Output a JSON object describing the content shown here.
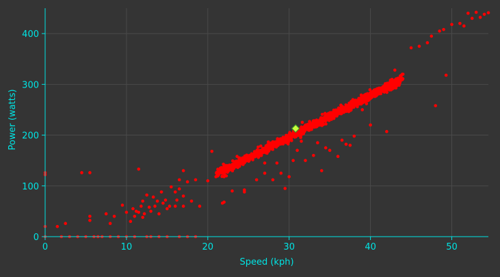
{
  "chart_data": {
    "type": "scatter",
    "title": "",
    "xlabel": "Speed (kph)",
    "ylabel": "Power (watts)",
    "xlim": [
      0,
      54.5
    ],
    "ylim": [
      0,
      450
    ],
    "x_ticks": [
      0,
      10,
      20,
      30,
      40,
      50
    ],
    "y_ticks": [
      0,
      100,
      200,
      300,
      400
    ],
    "grid": true,
    "legend": "none",
    "colors": {
      "background": "#343434",
      "grid": "#4a4a4a",
      "axis": "#00e5e5",
      "text": "#00e5e5",
      "points": "#ff0000",
      "highlight_fill": "#c8ff3c",
      "highlight_stroke": "#3a8a2a"
    },
    "series": [
      {
        "main_band": {
          "x_range": [
            21,
            44
          ],
          "slope": 8.2,
          "intercept": -50,
          "spread": 4,
          "density": "very high"
        },
        "points": [
          [
            0,
            0
          ],
          [
            0,
            20
          ],
          [
            0,
            122
          ],
          [
            0,
            126
          ],
          [
            1.5,
            20
          ],
          [
            2.5,
            26
          ],
          [
            2,
            0
          ],
          [
            3,
            0
          ],
          [
            4,
            0
          ],
          [
            5,
            0
          ],
          [
            5.5,
            32
          ],
          [
            5.5,
            40
          ],
          [
            6,
            0
          ],
          [
            6.5,
            0
          ],
          [
            7,
            0
          ],
          [
            7.5,
            45
          ],
          [
            8,
            26
          ],
          [
            8,
            0
          ],
          [
            8.5,
            40
          ],
          [
            9,
            0
          ],
          [
            9.5,
            62
          ],
          [
            10,
            48
          ],
          [
            10,
            0
          ],
          [
            10.5,
            30
          ],
          [
            10.8,
            55
          ],
          [
            11,
            40
          ],
          [
            11,
            0
          ],
          [
            11.2,
            50
          ],
          [
            11.5,
            133
          ],
          [
            11.5,
            48
          ],
          [
            11.8,
            60
          ],
          [
            12,
            70
          ],
          [
            12,
            38
          ],
          [
            12.2,
            45
          ],
          [
            12.5,
            0
          ],
          [
            12.5,
            82
          ],
          [
            12.8,
            58
          ],
          [
            13,
            50
          ],
          [
            13,
            0
          ],
          [
            13.3,
            78
          ],
          [
            13.5,
            60
          ],
          [
            13.8,
            70
          ],
          [
            14,
            45
          ],
          [
            14,
            0
          ],
          [
            14.3,
            88
          ],
          [
            14.5,
            66
          ],
          [
            14.8,
            72
          ],
          [
            15,
            55
          ],
          [
            15,
            0
          ],
          [
            15.3,
            60
          ],
          [
            15.5,
            98
          ],
          [
            16,
            88
          ],
          [
            16,
            60
          ],
          [
            16.2,
            72
          ],
          [
            16.5,
            94
          ],
          [
            16.5,
            0
          ],
          [
            17,
            60
          ],
          [
            17,
            80
          ],
          [
            17.5,
            108
          ],
          [
            17.5,
            0
          ],
          [
            18,
            70
          ],
          [
            18.5,
            112
          ],
          [
            18.5,
            0
          ],
          [
            19,
            60
          ],
          [
            20,
            110
          ],
          [
            20.5,
            168
          ],
          [
            21,
            118
          ],
          [
            21.8,
            66
          ],
          [
            22,
            68
          ],
          [
            22,
            118
          ],
          [
            23,
            90
          ],
          [
            24.5,
            88
          ],
          [
            24.5,
            92
          ],
          [
            26,
            112
          ],
          [
            27,
            125
          ],
          [
            27,
            145
          ],
          [
            28,
            112
          ],
          [
            28.5,
            145
          ],
          [
            29,
            125
          ],
          [
            29.5,
            95
          ],
          [
            30,
            118
          ],
          [
            30.5,
            150
          ],
          [
            31,
            170
          ],
          [
            31.5,
            188
          ],
          [
            32,
            150
          ],
          [
            33,
            160
          ],
          [
            33.5,
            185
          ],
          [
            34,
            130
          ],
          [
            34.5,
            175
          ],
          [
            35,
            170
          ],
          [
            36,
            158
          ],
          [
            36.5,
            190
          ],
          [
            37,
            182
          ],
          [
            37.5,
            180
          ],
          [
            38,
            198
          ],
          [
            39,
            250
          ],
          [
            40,
            220
          ],
          [
            41,
            290
          ],
          [
            42,
            207
          ],
          [
            43,
            328
          ],
          [
            44,
            320
          ],
          [
            45,
            372
          ],
          [
            46,
            375
          ],
          [
            47,
            382
          ],
          [
            47.5,
            395
          ],
          [
            48,
            258
          ],
          [
            48.5,
            405
          ],
          [
            49,
            408
          ],
          [
            49.3,
            318
          ],
          [
            50,
            418
          ],
          [
            51,
            420
          ],
          [
            51.5,
            415
          ],
          [
            52,
            440
          ],
          [
            52.5,
            430
          ],
          [
            53,
            442
          ],
          [
            53.5,
            432
          ],
          [
            54,
            438
          ],
          [
            54.5,
            441
          ],
          [
            5.5,
            126
          ],
          [
            17,
            130
          ],
          [
            4.5,
            126
          ],
          [
            16.5,
            112
          ]
        ]
      }
    ],
    "highlight": {
      "x": 30.8,
      "y": 213
    }
  }
}
